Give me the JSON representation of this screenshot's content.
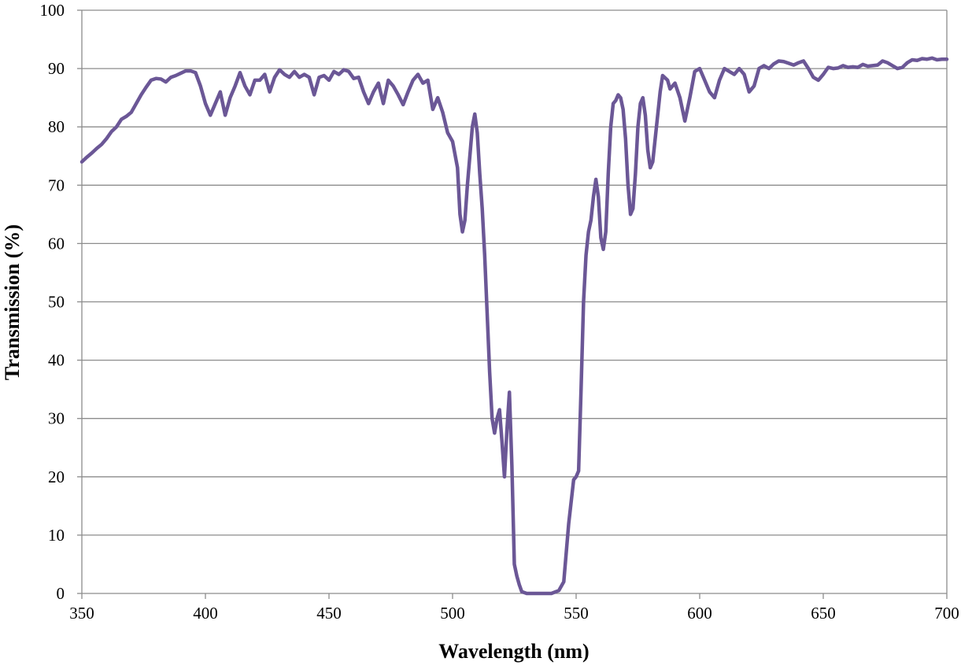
{
  "chart_data": {
    "type": "line",
    "x_label": "Wavelength (nm)",
    "y_label": "Transmission (%)",
    "xlim": [
      350,
      700
    ],
    "xticks": [
      350,
      400,
      450,
      500,
      550,
      600,
      650,
      700
    ],
    "ylim": [
      0,
      100
    ],
    "yticks": [
      0,
      10,
      20,
      30,
      40,
      50,
      60,
      70,
      80,
      90,
      100
    ],
    "grid": true,
    "x": [
      350,
      352,
      354,
      356,
      358,
      360,
      362,
      364,
      366,
      368,
      370,
      372,
      374,
      376,
      378,
      380,
      382,
      384,
      386,
      388,
      390,
      392,
      394,
      396,
      398,
      400,
      402,
      404,
      406,
      408,
      410,
      412,
      414,
      416,
      418,
      420,
      422,
      424,
      426,
      428,
      430,
      432,
      434,
      436,
      438,
      440,
      442,
      444,
      446,
      448,
      450,
      452,
      454,
      456,
      458,
      460,
      462,
      464,
      466,
      468,
      470,
      472,
      474,
      476,
      478,
      480,
      482,
      484,
      486,
      488,
      490,
      492,
      494,
      496,
      498,
      500,
      502,
      503,
      504,
      505,
      506,
      508,
      509,
      510,
      511,
      512,
      513,
      514,
      515,
      516,
      517,
      518,
      519,
      520,
      521,
      522,
      523,
      524,
      525,
      526,
      527,
      528,
      530,
      535,
      540,
      543,
      545,
      547,
      549,
      550,
      551,
      552,
      553,
      554,
      555,
      556,
      557,
      558,
      559,
      560,
      561,
      562,
      563,
      564,
      565,
      566,
      567,
      568,
      569,
      570,
      571,
      572,
      573,
      574,
      575,
      576,
      577,
      578,
      579,
      580,
      581,
      582,
      584,
      585,
      587,
      588,
      590,
      592,
      594,
      596,
      598,
      600,
      602,
      604,
      606,
      608,
      610,
      612,
      614,
      616,
      618,
      620,
      622,
      624,
      626,
      628,
      630,
      632,
      634,
      636,
      638,
      640,
      642,
      644,
      646,
      648,
      650,
      652,
      654,
      656,
      658,
      660,
      662,
      664,
      666,
      668,
      670,
      672,
      674,
      676,
      678,
      680,
      682,
      684,
      686,
      688,
      690,
      692,
      694,
      696,
      698,
      700
    ],
    "series": [
      {
        "name": "Transmission",
        "color": "#6b5796",
        "values": [
          74,
          74.8,
          75.5,
          76.3,
          77,
          78,
          79.2,
          80,
          81.3,
          81.8,
          82.5,
          84,
          85.5,
          86.8,
          88,
          88.3,
          88.2,
          87.7,
          88.5,
          88.8,
          89.2,
          89.6,
          89.6,
          89.3,
          87,
          84,
          82,
          84,
          86,
          82,
          85,
          87,
          89.3,
          87,
          85.5,
          88,
          88,
          89,
          86,
          88.5,
          89.8,
          89,
          88.5,
          89.5,
          88.5,
          89,
          88.5,
          85.5,
          88.5,
          88.8,
          88,
          89.5,
          89,
          89.8,
          89.5,
          88.3,
          88.5,
          86,
          84,
          86,
          87.5,
          84,
          88,
          87,
          85.5,
          83.8,
          86,
          88,
          89,
          87.5,
          88,
          83,
          85,
          82.5,
          79,
          77.5,
          73,
          65,
          62,
          64,
          70,
          80,
          82.2,
          79,
          72,
          66,
          58,
          48,
          38,
          30,
          27.5,
          30,
          31.5,
          26,
          20,
          28,
          34.5,
          22,
          5,
          3,
          1.5,
          0.3,
          0,
          0,
          0,
          0.5,
          2,
          12,
          19.5,
          20,
          21,
          35,
          50,
          58,
          62,
          64,
          68,
          71,
          68,
          61,
          59,
          62,
          72,
          80,
          84,
          84.5,
          85.5,
          85,
          83,
          78,
          70,
          65,
          66,
          72,
          80,
          84,
          85,
          82,
          76,
          73,
          74,
          78,
          86,
          88.8,
          88,
          86.5,
          87.5,
          85,
          81,
          85,
          89.5,
          90,
          88,
          86,
          85,
          88,
          90,
          89.5,
          89,
          90,
          89,
          86,
          87,
          90,
          90.5,
          90,
          90.8,
          91.3,
          91.2,
          90.9,
          90.6,
          91,
          91.3,
          90,
          88.5,
          88,
          89,
          90.2,
          90,
          90.1,
          90.5,
          90.2,
          90.3,
          90.2,
          90.7,
          90.4,
          90.5,
          90.6,
          91.3,
          91,
          90.5,
          90,
          90.2,
          91,
          91.5,
          91.4,
          91.7,
          91.6,
          91.8,
          91.5,
          91.6,
          91.6
        ]
      }
    ]
  }
}
